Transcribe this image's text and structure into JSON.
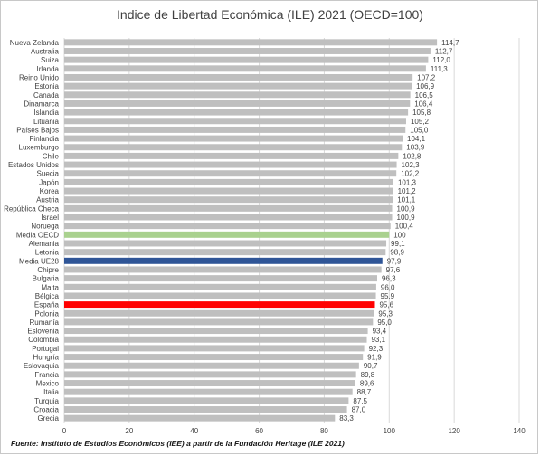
{
  "chart_data": {
    "type": "bar",
    "orientation": "horizontal",
    "title": "Indice de Libertad Económica (ILE) 2021 (OECD=100)",
    "categories": [
      "Nueva Zelanda",
      "Australia",
      "Suiza",
      "Irlanda",
      "Reino Unido",
      "Estonia",
      "Canada",
      "Dinamarca",
      "Islandia",
      "Lituania",
      "Países Bajos",
      "Finlandia",
      "Luxemburgo",
      "Chile",
      "Estados Unidos",
      "Suecia",
      "Japón",
      "Korea",
      "Austria",
      "República Checa",
      "Israel",
      "Noruega",
      "Media OECD",
      "Alemania",
      "Letonia",
      "Media UE28",
      "Chipre",
      "Bulgaria",
      "Malta",
      "Bélgica",
      "España",
      "Polonia",
      "Rumanía",
      "Eslovenia",
      "Colombia",
      "Portugal",
      "Hungría",
      "Eslovaquia",
      "Francia",
      "Mexico",
      "Italia",
      "Turquia",
      "Croacia",
      "Grecia"
    ],
    "values": [
      114.7,
      112.7,
      112.0,
      111.3,
      107.2,
      106.9,
      106.5,
      106.4,
      105.8,
      105.2,
      105.0,
      104.1,
      103.9,
      102.8,
      102.3,
      102.2,
      101.3,
      101.2,
      101.1,
      100.9,
      100.9,
      100.4,
      100,
      99.1,
      98.9,
      97.9,
      97.6,
      96.3,
      96.0,
      95.9,
      95.6,
      95.3,
      95.0,
      93.4,
      93.1,
      92.3,
      91.9,
      90.7,
      89.8,
      89.6,
      88.7,
      87.5,
      87.0,
      83.3
    ],
    "value_labels": [
      "114,7",
      "112,7",
      "112,0",
      "111,3",
      "107,2",
      "106,9",
      "106,5",
      "106,4",
      "105,8",
      "105,2",
      "105,0",
      "104,1",
      "103,9",
      "102,8",
      "102,3",
      "102,2",
      "101,3",
      "101,2",
      "101,1",
      "100,9",
      "100,9",
      "100,4",
      "100",
      "99,1",
      "98,9",
      "97,9",
      "97,6",
      "96,3",
      "96,0",
      "95,9",
      "95,6",
      "95,3",
      "95,0",
      "93,4",
      "93,1",
      "92,3",
      "91,9",
      "90,7",
      "89,8",
      "89,6",
      "88,7",
      "87,5",
      "87,0",
      "83,3"
    ],
    "xlim": [
      0,
      140
    ],
    "xticks": [
      0,
      20,
      40,
      60,
      80,
      100,
      120,
      140
    ],
    "grid": true,
    "legend": "none",
    "colors": {
      "default": "#bfbfbf",
      "Media OECD": "#a9d18e",
      "Media UE28": "#2f5597",
      "España": "#ff0000",
      "grid": "#d9d9d9"
    }
  },
  "source_note": "Fuente: Instituto de Estudios Económicos (IEE) a partir de la Fundación Heritage (ILE 2021)"
}
